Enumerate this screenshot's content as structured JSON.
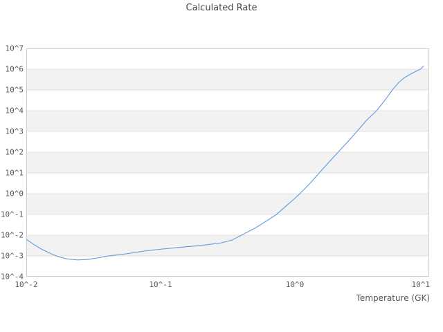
{
  "title": "Calculated Rate",
  "axes": {
    "x": {
      "label": "Temperature (GK)",
      "tick_labels": [
        "10^-2",
        "10^-1",
        "10^0",
        "10^1"
      ],
      "tick_exponents": [
        -2,
        -1,
        0,
        1
      ]
    },
    "y": {
      "tick_labels": [
        "10^7",
        "10^6",
        "10^5",
        "10^4",
        "10^3",
        "10^2",
        "10^1",
        "10^0",
        "10^-1",
        "10^-2",
        "10^-3",
        "10^-4"
      ],
      "tick_exponents": [
        7,
        6,
        5,
        4,
        3,
        2,
        1,
        0,
        -1,
        -2,
        -3,
        -4
      ]
    }
  },
  "colors": {
    "line": "#6d9eda",
    "band": "#f2f2f2",
    "grid": "#e1e1e1",
    "border": "#cccccc",
    "title_text": "#454545",
    "tick_text": "#555555"
  },
  "chart_data": {
    "type": "line",
    "title": "Calculated Rate",
    "xlabel": "Temperature (GK)",
    "ylabel": "",
    "xscale": "log",
    "yscale": "log",
    "xlim": [
      0.01,
      10
    ],
    "ylim": [
      0.0001,
      10000000
    ],
    "grid": "horizontal-bands-per-decade",
    "legend": "none",
    "series": [
      {
        "name": "Calculated Rate",
        "color": "#6d9eda",
        "points": [
          [
            0.01,
            0.0063
          ],
          [
            0.0115,
            0.0034
          ],
          [
            0.013,
            0.0021
          ],
          [
            0.015,
            0.00135
          ],
          [
            0.017,
            0.00096
          ],
          [
            0.02,
            0.00072
          ],
          [
            0.024,
            0.00064
          ],
          [
            0.029,
            0.00068
          ],
          [
            0.035,
            0.00083
          ],
          [
            0.041,
            0.001
          ],
          [
            0.055,
            0.00125
          ],
          [
            0.08,
            0.0018
          ],
          [
            0.1,
            0.0021
          ],
          [
            0.14,
            0.0026
          ],
          [
            0.2,
            0.0032
          ],
          [
            0.28,
            0.0042
          ],
          [
            0.34,
            0.0058
          ],
          [
            0.4,
            0.01
          ],
          [
            0.5,
            0.021
          ],
          [
            0.62,
            0.05
          ],
          [
            0.73,
            0.1
          ],
          [
            0.88,
            0.29
          ],
          [
            1.0,
            0.6
          ],
          [
            1.09,
            1.0
          ],
          [
            1.3,
            3.2
          ],
          [
            1.52,
            10
          ],
          [
            1.8,
            34
          ],
          [
            2.1,
            100
          ],
          [
            2.5,
            340
          ],
          [
            2.9,
            1000
          ],
          [
            3.4,
            3300
          ],
          [
            4.06,
            10000
          ],
          [
            4.7,
            33000
          ],
          [
            5.32,
            100000
          ],
          [
            5.9,
            220000
          ],
          [
            6.5,
            380000
          ],
          [
            7.2,
            560000
          ],
          [
            8.0,
            800000
          ],
          [
            8.6,
            1000000
          ],
          [
            9.05,
            1350000
          ]
        ]
      }
    ]
  }
}
